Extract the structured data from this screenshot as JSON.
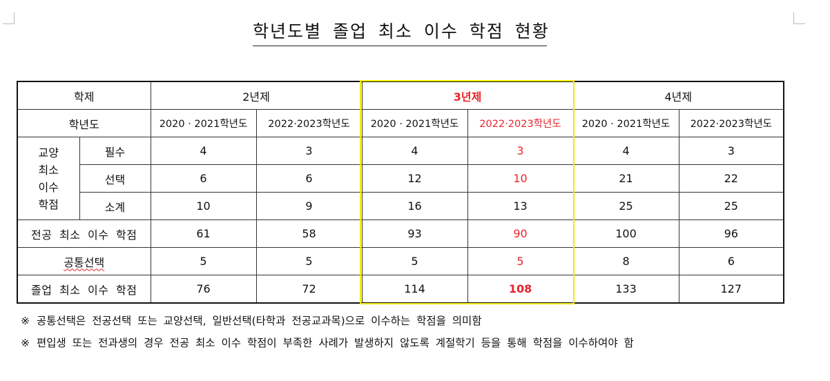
{
  "title": "학년도별 졸업 최소 이수 학점 현황",
  "table": {
    "header_program": "학제",
    "programs": [
      "2년제",
      "3년제",
      "4년제"
    ],
    "header_year": "학년도",
    "years": [
      "2020 · 2021학년도",
      "2022·2023학년도",
      "2020 · 2021학년도",
      "2022·2023학년도",
      "2020 · 2021학년도",
      "2022·2023학년도"
    ],
    "liberal_group_label": "교양\n최소\n이수\n학점",
    "rows": {
      "required": {
        "label": "필수",
        "values": [
          "4",
          "3",
          "4",
          "3",
          "4",
          "3"
        ]
      },
      "elective": {
        "label": "선택",
        "values": [
          "6",
          "6",
          "12",
          "10",
          "21",
          "22"
        ]
      },
      "subtotal": {
        "label": "소계",
        "values": [
          "10",
          "9",
          "16",
          "13",
          "25",
          "25"
        ]
      },
      "major": {
        "label": "전공 최소 이수 학점",
        "values": [
          "61",
          "58",
          "93",
          "90",
          "100",
          "96"
        ]
      },
      "common": {
        "label": "공통선택",
        "values": [
          "5",
          "5",
          "5",
          "5",
          "8",
          "6"
        ]
      },
      "graduation": {
        "label": "졸업 최소 이수 학점",
        "values": [
          "76",
          "72",
          "114",
          "108",
          "133",
          "127"
        ]
      }
    }
  },
  "notes": {
    "mark": "※",
    "note1": "공통선택은 전공선택 또는 교양선택, 일반선택(타학과 전공교과목)으로 이수하는 학점을 의미함",
    "note2": "편입생 또는 전과생의 경우 전공 최소 이수 학점이 부족한 사례가 발생하지 않도록 계절학기 등을 통해 학점을 이수하여야 함"
  },
  "colors": {
    "highlight_text": "#e8252b",
    "highlight_box": "#f0ec00"
  }
}
